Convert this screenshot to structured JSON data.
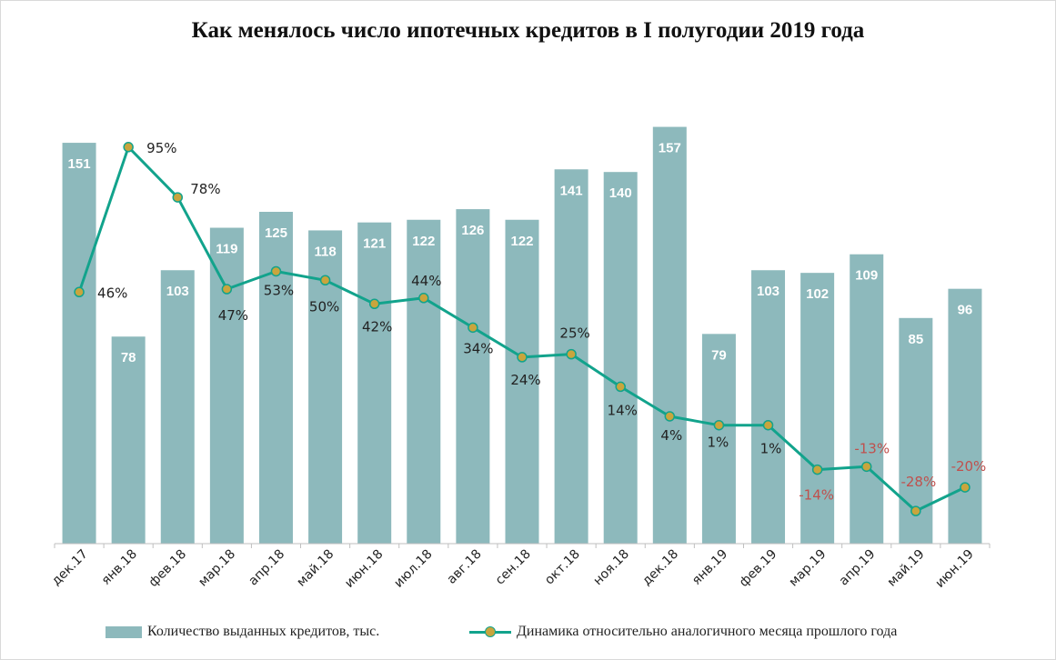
{
  "chart_data": {
    "type": "bar+line",
    "title": "Как менялось число ипотечных кредитов в I полугодии 2019 года",
    "categories": [
      "дек.17",
      "янв.18",
      "фев.18",
      "мар.18",
      "апр.18",
      "май.18",
      "июн.18",
      "июл.18",
      "авг.18",
      "сен.18",
      "окт.18",
      "ноя.18",
      "дек.18",
      "янв.19",
      "фев.19",
      "мар.19",
      "апр.19",
      "май.19",
      "июн.19"
    ],
    "series": [
      {
        "name": "Количество выданных кредитов, тыс.",
        "type": "bar",
        "values": [
          151,
          78,
          103,
          119,
          125,
          118,
          121,
          122,
          126,
          122,
          141,
          140,
          157,
          79,
          103,
          102,
          109,
          85,
          96
        ],
        "labels": [
          "151",
          "78",
          "103",
          "119",
          "125",
          "118",
          "121",
          "122",
          "126",
          "122",
          "141",
          "140",
          "157",
          "79",
          "103",
          "102",
          "109",
          "85",
          "96"
        ],
        "color": "#8db9bc"
      },
      {
        "name": "Динамика относительно аналогичного месяца прошлого года",
        "type": "line",
        "values": [
          46,
          95,
          78,
          47,
          53,
          50,
          42,
          44,
          34,
          24,
          25,
          14,
          4,
          1,
          1,
          -14,
          -13,
          -28,
          -20
        ],
        "labels": [
          "46%",
          "95%",
          "78%",
          "47%",
          "53%",
          "50%",
          "42%",
          "44%",
          "34%",
          "24%",
          "25%",
          "14%",
          "4%",
          "1%",
          "1%",
          "-14%",
          "-13%",
          "-28%",
          "-20%"
        ],
        "color": "#12a38c",
        "marker_fill": "#c9a53d",
        "negative_label_color": "#c0504d"
      }
    ],
    "bar_ylim": [
      0,
      160
    ],
    "line_ylim": [
      -40,
      120
    ],
    "legend_position": "bottom",
    "grid": false
  },
  "legend": {
    "bars_label": "Количество выданных кредитов, тыс.",
    "line_label": "Динамика относительно аналогичного месяца прошлого года"
  }
}
